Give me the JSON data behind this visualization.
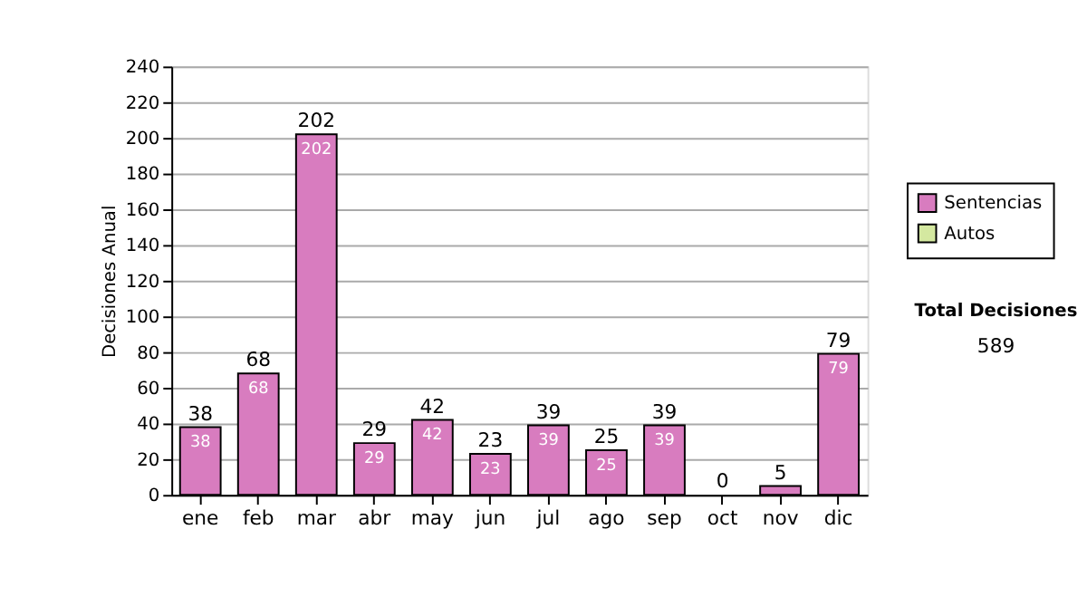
{
  "chart_data": {
    "type": "bar",
    "stacked": true,
    "ylabel": "Decisiones Anual",
    "categories": [
      "ene",
      "feb",
      "mar",
      "abr",
      "may",
      "jun",
      "jul",
      "ago",
      "sep",
      "oct",
      "nov",
      "dic"
    ],
    "series": [
      {
        "name": "Sentencias",
        "color": "#d87cbf",
        "values": [
          38,
          68,
          202,
          29,
          42,
          23,
          39,
          25,
          39,
          0,
          5,
          79
        ],
        "value_labels": [
          "38",
          "68",
          "202",
          "29",
          "42",
          "23",
          "39",
          "25",
          "39",
          null,
          null,
          "79"
        ]
      },
      {
        "name": "Autos",
        "color": "#d4e8a0",
        "values": [
          0,
          0,
          0,
          0,
          0,
          0,
          0,
          0,
          0,
          0,
          0,
          0
        ]
      }
    ],
    "totals": [
      "38",
      "68",
      "202",
      "29",
      "42",
      "23",
      "39",
      "25",
      "39",
      "0",
      "5",
      "79"
    ],
    "ylim": [
      0,
      240
    ],
    "yticks": [
      0,
      20,
      40,
      60,
      80,
      100,
      120,
      140,
      160,
      180,
      200,
      220,
      240
    ],
    "grid": "y",
    "legend": "right",
    "annotations": [
      "Total Decisiones",
      "589"
    ]
  }
}
